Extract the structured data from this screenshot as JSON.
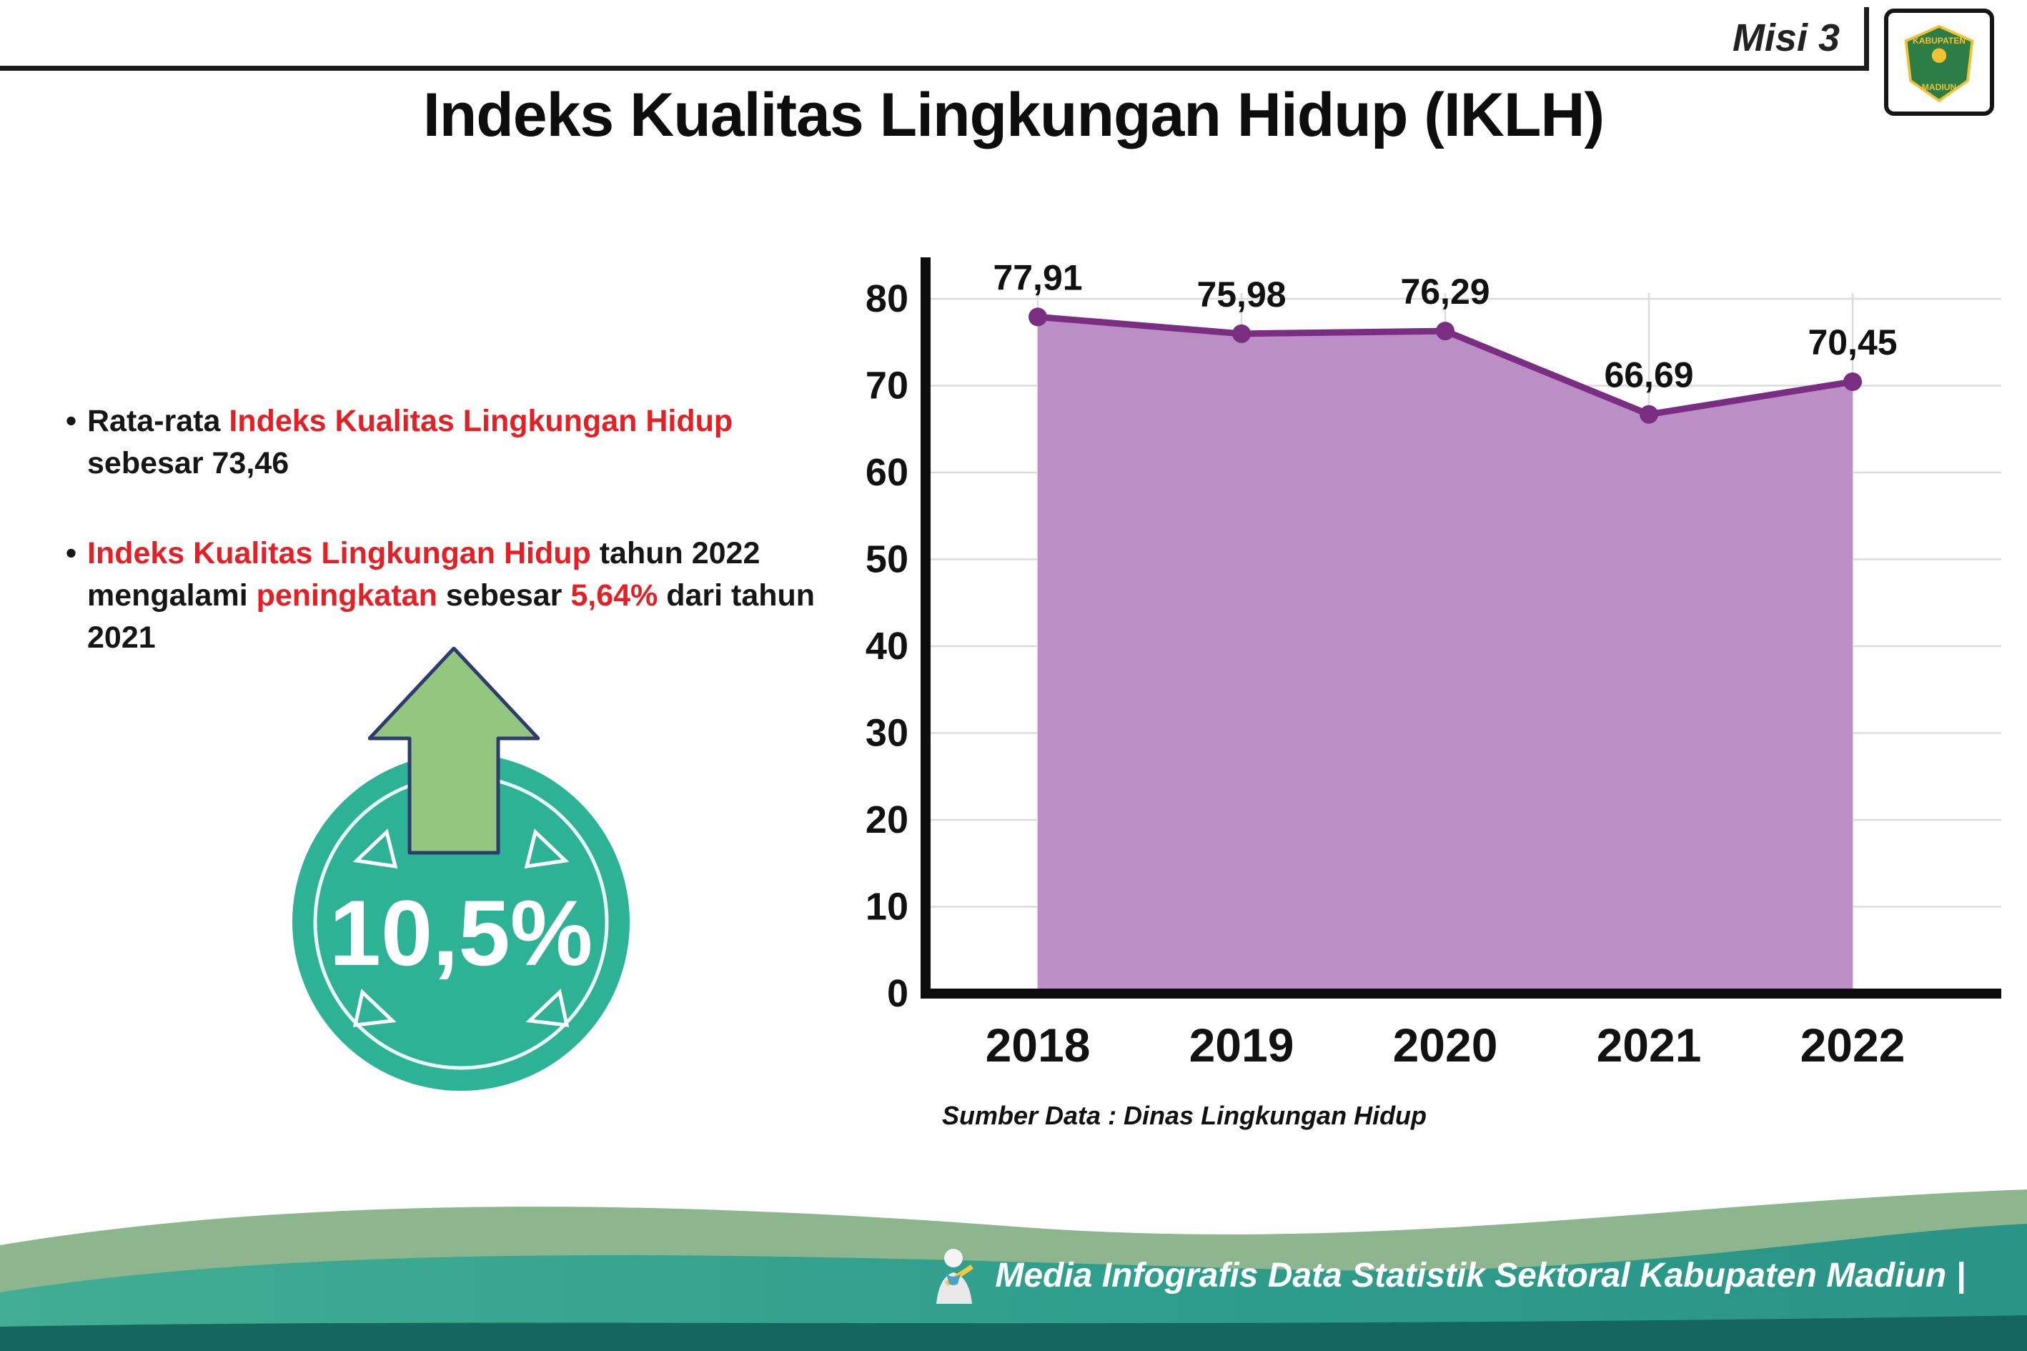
{
  "page": {
    "misi_label": "Misi 3",
    "title": "Indeks Kualitas Lingkungan Hidup (IKLH)"
  },
  "logo": {
    "top_text": "KABUPATEN",
    "bottom_text": "MADIUN"
  },
  "bullets": {
    "bullet1": {
      "seg1": "Rata-rata ",
      "seg2": "Indeks Kualitas Lingkungan Hidup",
      "seg3": " sebesar 73,46"
    },
    "bullet2": {
      "seg1": "Indeks Kualitas Lingkungan Hidup",
      "seg2": " tahun 2022 mengalami ",
      "seg3": "peningkatan",
      "seg4": " sebesar ",
      "seg5": "5,64%",
      "seg6": " dari tahun 2021"
    }
  },
  "highlight": {
    "value": "10,5%"
  },
  "chart_data": {
    "type": "area",
    "title": "Indeks Kualitas Lingkungan Hidup (IKLH)",
    "categories": [
      "2018",
      "2019",
      "2020",
      "2021",
      "2022"
    ],
    "values": [
      77.91,
      75.98,
      76.29,
      66.69,
      70.45
    ],
    "value_labels": [
      "77,91",
      "75,98",
      "76,29",
      "66,69",
      "70,45"
    ],
    "ylim": [
      0,
      80
    ],
    "yticks": [
      0,
      10,
      20,
      30,
      40,
      50,
      60,
      70,
      80
    ],
    "grid": "light-gray",
    "legend": "none",
    "fill_color": "#bc8ec6",
    "line_color": "#7a2e82",
    "source": "Sumber Data : Dinas Lingkungan Hidup"
  },
  "footer": {
    "text": "Media Infografis Data Statistik Sektoral Kabupaten Madiun |"
  },
  "colors": {
    "accent_red": "#e32026",
    "badge_teal": "#2eb296",
    "arrow_green": "#93c67e",
    "area_fill": "#bc8ec6",
    "line_purple": "#7a2e82"
  }
}
